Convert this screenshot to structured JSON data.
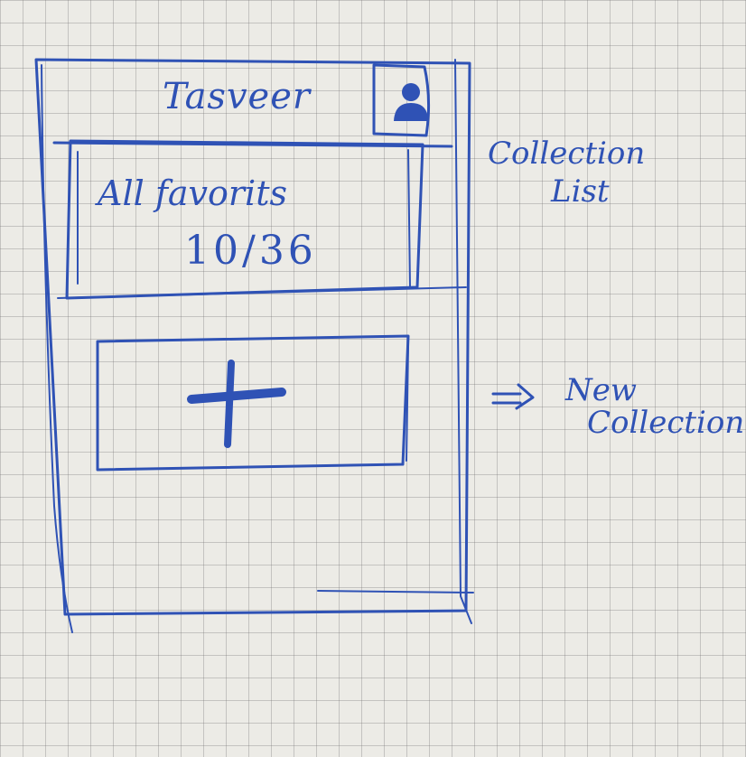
{
  "app": {
    "title": "Tasveer"
  },
  "header": {
    "profile_icon": "user-icon"
  },
  "collections": [
    {
      "name": "All favorits",
      "count": "10/36"
    }
  ],
  "new_collection": {
    "icon": "plus-icon"
  },
  "annotations": {
    "collection_list": [
      "Collection",
      "List"
    ],
    "new_collection": [
      "New",
      "Collection"
    ],
    "arrow": "=>"
  },
  "colors": {
    "ink": "#2f52b5",
    "paper": "#ecebe6"
  }
}
